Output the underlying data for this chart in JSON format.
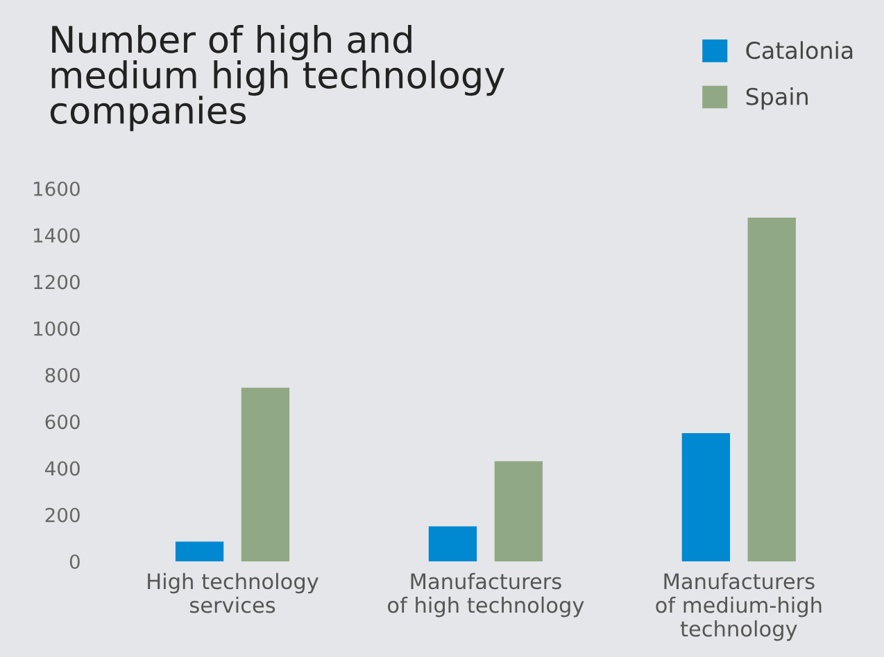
{
  "chart_data": {
    "type": "bar",
    "title": "Number of high and\nmedium high technology\ncompanies",
    "categories": [
      "High technology\nservices",
      "Manufacturers\nof high technology",
      "Manufacturers\nof medium-high\ntechnology"
    ],
    "series": [
      {
        "name": "Catalonia",
        "color": "#0088d1",
        "values": [
          85,
          150,
          550
        ]
      },
      {
        "name": "Spain",
        "color": "#91a884",
        "values": [
          745,
          430,
          1475
        ]
      }
    ],
    "ylim": [
      0,
      1600
    ],
    "yticks": [
      0,
      200,
      400,
      600,
      800,
      1000,
      1200,
      1400,
      1600
    ],
    "grid": false,
    "legend": "top right"
  }
}
